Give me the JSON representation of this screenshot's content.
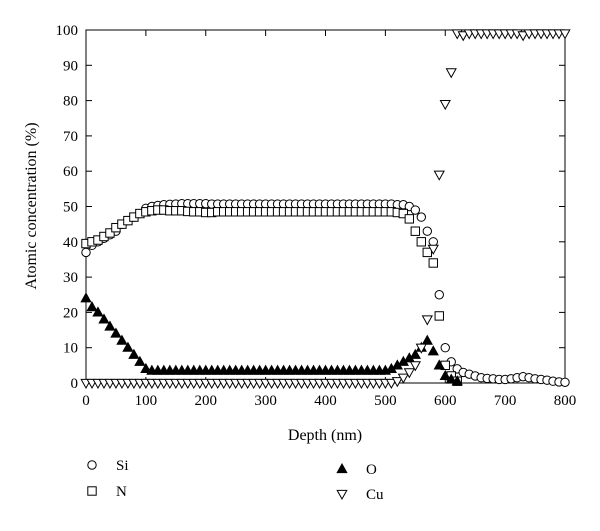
{
  "chart_data": {
    "type": "scatter",
    "xlabel": "Depth (nm)",
    "ylabel": "Atomic concentration (%)",
    "xlim": [
      0,
      800
    ],
    "ylim": [
      0,
      100
    ],
    "xticks": [
      0,
      100,
      200,
      300,
      400,
      500,
      600,
      700,
      800
    ],
    "yticks": [
      0,
      10,
      20,
      30,
      40,
      50,
      60,
      70,
      80,
      90,
      100
    ],
    "grid": false,
    "legend_position": "bottom",
    "series": [
      {
        "name": "Si",
        "marker": "circle-open",
        "x": [
          0,
          10,
          20,
          30,
          40,
          50,
          60,
          70,
          80,
          90,
          100,
          110,
          120,
          130,
          140,
          150,
          160,
          170,
          180,
          190,
          200,
          210,
          220,
          230,
          240,
          250,
          260,
          270,
          280,
          290,
          300,
          310,
          320,
          330,
          340,
          350,
          360,
          370,
          380,
          390,
          400,
          410,
          420,
          430,
          440,
          450,
          460,
          470,
          480,
          490,
          500,
          510,
          520,
          530,
          540,
          550,
          560,
          570,
          580,
          590,
          600,
          610,
          620,
          630,
          640,
          650,
          660,
          670,
          680,
          690,
          700,
          710,
          720,
          730,
          740,
          750,
          760,
          770,
          780,
          790,
          800
        ],
        "y": [
          37,
          39,
          40,
          41,
          42,
          43,
          45,
          46,
          47,
          48,
          49.5,
          50,
          50.3,
          50.5,
          50.6,
          50.7,
          50.8,
          50.8,
          50.8,
          50.8,
          50.8,
          50.7,
          50.7,
          50.7,
          50.7,
          50.7,
          50.7,
          50.7,
          50.7,
          50.7,
          50.7,
          50.7,
          50.7,
          50.7,
          50.7,
          50.7,
          50.7,
          50.7,
          50.7,
          50.7,
          50.7,
          50.7,
          50.7,
          50.7,
          50.7,
          50.7,
          50.7,
          50.7,
          50.7,
          50.7,
          50.7,
          50.7,
          50.5,
          50.5,
          50,
          49,
          47,
          43,
          40,
          25,
          10,
          6,
          4,
          3,
          2.5,
          2,
          1.5,
          1.3,
          1.2,
          1,
          1,
          1.2,
          1.5,
          1.8,
          1.5,
          1.2,
          1,
          0.8,
          0.5,
          0.3,
          0.2
        ]
      },
      {
        "name": "N",
        "marker": "square-open",
        "x": [
          0,
          10,
          20,
          30,
          40,
          50,
          60,
          70,
          80,
          90,
          100,
          110,
          120,
          130,
          140,
          150,
          160,
          170,
          180,
          190,
          200,
          210,
          220,
          230,
          240,
          250,
          260,
          270,
          280,
          290,
          300,
          310,
          320,
          330,
          340,
          350,
          360,
          370,
          380,
          390,
          400,
          410,
          420,
          430,
          440,
          450,
          460,
          470,
          480,
          490,
          500,
          510,
          520,
          530,
          540,
          550,
          560,
          570,
          580,
          590,
          600,
          610,
          620
        ],
        "y": [
          39.5,
          40,
          40.5,
          41.5,
          42.5,
          44,
          45,
          46,
          47,
          48,
          48.5,
          48.8,
          49,
          49,
          48.8,
          48.8,
          48.8,
          48.6,
          48.5,
          48.5,
          48.3,
          48.3,
          48.5,
          48.5,
          48.5,
          48.5,
          48.5,
          48.5,
          48.5,
          48.5,
          48.5,
          48.5,
          48.5,
          48.5,
          48.5,
          48.5,
          48.5,
          48.5,
          48.5,
          48.5,
          48.5,
          48.5,
          48.5,
          48.5,
          48.5,
          48.5,
          48.5,
          48.5,
          48.5,
          48.5,
          48.5,
          48.5,
          48.3,
          48,
          46.5,
          43,
          40,
          37,
          34,
          19,
          5,
          2,
          0.5
        ]
      },
      {
        "name": "O",
        "marker": "triangle-up-filled",
        "x": [
          0,
          10,
          20,
          30,
          40,
          50,
          60,
          70,
          80,
          90,
          100,
          110,
          120,
          130,
          140,
          150,
          160,
          170,
          180,
          190,
          200,
          210,
          220,
          230,
          240,
          250,
          260,
          270,
          280,
          290,
          300,
          310,
          320,
          330,
          340,
          350,
          360,
          370,
          380,
          390,
          400,
          410,
          420,
          430,
          440,
          450,
          460,
          470,
          480,
          490,
          500,
          510,
          520,
          530,
          540,
          550,
          560,
          570,
          580,
          590,
          600,
          610,
          620
        ],
        "y": [
          24,
          21.5,
          20,
          18,
          16,
          14,
          12,
          10,
          8,
          6,
          4,
          3.5,
          3.5,
          3.5,
          3.5,
          3.5,
          3.5,
          3.5,
          3.5,
          3.5,
          3.5,
          3.5,
          3.5,
          3.5,
          3.5,
          3.5,
          3.5,
          3.5,
          3.5,
          3.5,
          3.5,
          3.5,
          3.5,
          3.5,
          3.5,
          3.5,
          3.5,
          3.5,
          3.5,
          3.5,
          3.5,
          3.5,
          3.5,
          3.5,
          3.5,
          3.5,
          3.5,
          3.5,
          3.5,
          3.5,
          3.5,
          4,
          5,
          6,
          7,
          8,
          10,
          12,
          9,
          5,
          2,
          1,
          0.5
        ]
      },
      {
        "name": "Cu",
        "marker": "triangle-down-open",
        "x": [
          0,
          10,
          20,
          30,
          40,
          50,
          60,
          70,
          80,
          90,
          100,
          110,
          120,
          130,
          140,
          150,
          160,
          170,
          180,
          190,
          200,
          210,
          220,
          230,
          240,
          250,
          260,
          270,
          280,
          290,
          300,
          310,
          320,
          330,
          340,
          350,
          360,
          370,
          380,
          390,
          400,
          410,
          420,
          430,
          440,
          450,
          460,
          470,
          480,
          490,
          500,
          510,
          520,
          530,
          540,
          550,
          560,
          570,
          580,
          590,
          600,
          610,
          620,
          630,
          640,
          650,
          660,
          670,
          680,
          690,
          700,
          710,
          720,
          730,
          740,
          750,
          760,
          770,
          780,
          790,
          800
        ],
        "y": [
          0,
          0,
          0,
          0,
          0,
          0,
          0,
          0,
          0,
          0,
          0,
          0,
          0,
          0,
          0,
          0,
          0,
          0,
          0,
          0,
          0,
          0,
          0,
          0,
          0,
          0,
          0,
          0,
          0,
          0,
          0,
          0,
          0,
          0,
          0,
          0,
          0,
          0,
          0,
          0,
          0,
          0,
          0,
          0,
          0,
          0,
          0,
          0,
          0,
          0,
          0,
          0,
          0.5,
          1.5,
          3,
          5,
          10,
          18,
          38,
          59,
          79,
          88,
          99,
          98.5,
          99,
          99,
          99,
          99,
          99,
          99,
          99,
          99,
          99,
          98.5,
          99,
          99,
          99,
          99,
          99,
          99,
          99
        ]
      }
    ]
  }
}
